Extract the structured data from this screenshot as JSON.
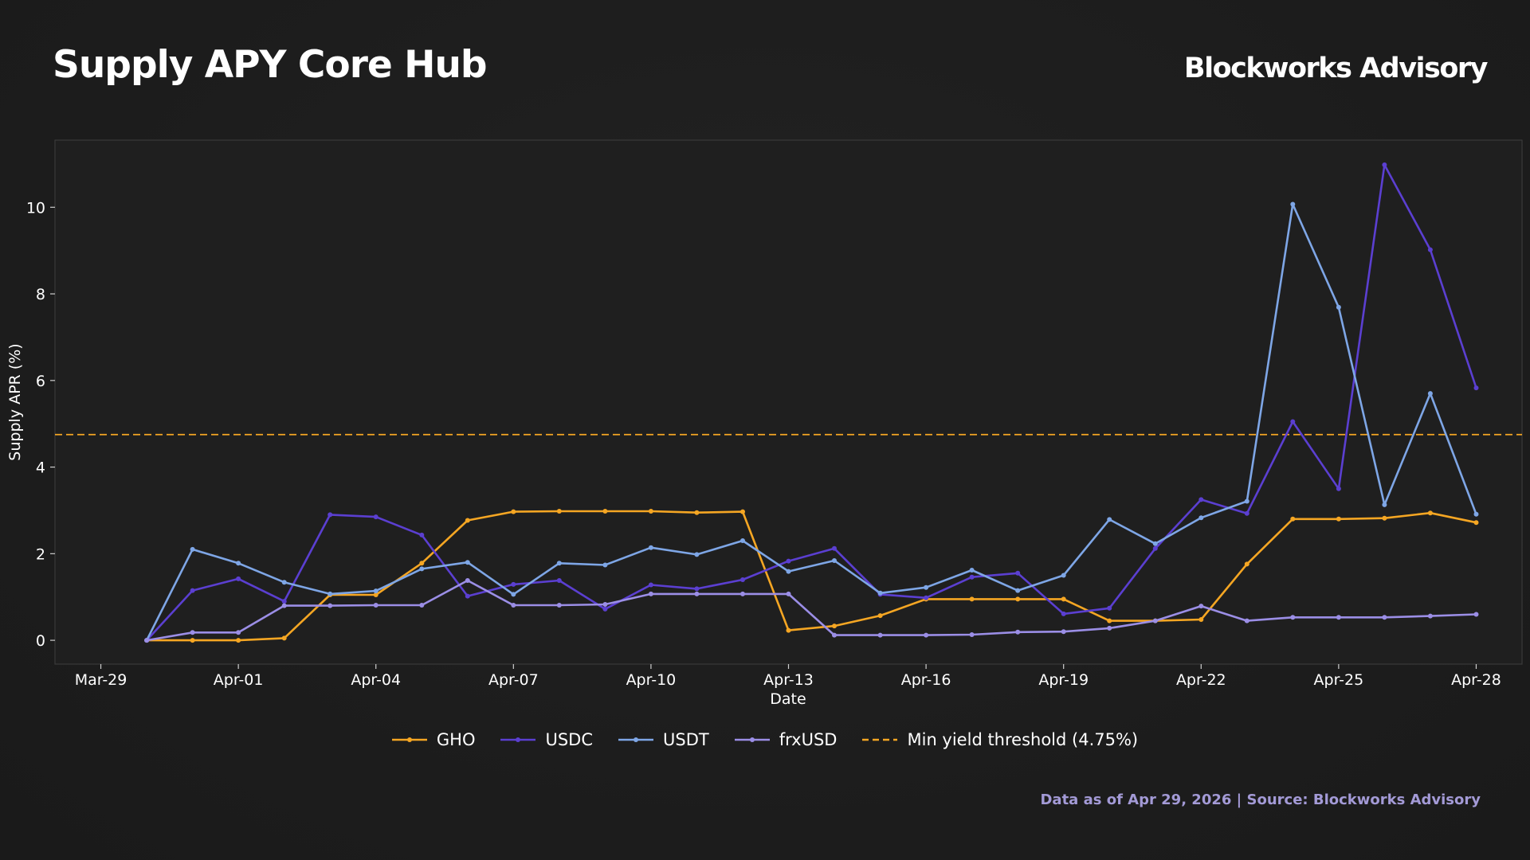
{
  "header": {
    "title": "Supply APY Core Hub",
    "brand": "Blockworks Advisory"
  },
  "footer": {
    "note": "Data as of Apr 29, 2026 | Source: Blockworks Advisory"
  },
  "colors": {
    "background": "#1d1d1d",
    "GHO": "#f5a623",
    "USDC": "#5b3fd1",
    "USDT": "#7ea6e6",
    "frxUSD": "#9b8ee6",
    "threshold": "#f5a623",
    "footer": "#a39ad6"
  },
  "chart_data": {
    "type": "line",
    "xlabel": "Date",
    "ylabel": "Supply APR (%)",
    "x_tick_labels": [
      "Mar-29",
      "Apr-01",
      "Apr-04",
      "Apr-07",
      "Apr-10",
      "Apr-13",
      "Apr-16",
      "Apr-19",
      "Apr-22",
      "Apr-25",
      "Apr-28"
    ],
    "x_tick_dates": [
      "2026-03-29",
      "2026-04-01",
      "2026-04-04",
      "2026-04-07",
      "2026-04-10",
      "2026-04-13",
      "2026-04-16",
      "2026-04-19",
      "2026-04-22",
      "2026-04-25",
      "2026-04-28"
    ],
    "x_range": [
      "2026-03-28",
      "2026-04-29"
    ],
    "y_tick_labels": [
      "0",
      "2",
      "4",
      "6",
      "8",
      "10"
    ],
    "ylim": [
      -0.55,
      11.55
    ],
    "grid": false,
    "legend_position": "bottom-center",
    "x": [
      "2026-03-30",
      "2026-03-31",
      "2026-04-01",
      "2026-04-02",
      "2026-04-03",
      "2026-04-04",
      "2026-04-05",
      "2026-04-06",
      "2026-04-07",
      "2026-04-08",
      "2026-04-09",
      "2026-04-10",
      "2026-04-11",
      "2026-04-12",
      "2026-04-13",
      "2026-04-14",
      "2026-04-15",
      "2026-04-16",
      "2026-04-17",
      "2026-04-18",
      "2026-04-19",
      "2026-04-20",
      "2026-04-21",
      "2026-04-22",
      "2026-04-23",
      "2026-04-24",
      "2026-04-25",
      "2026-04-26",
      "2026-04-27",
      "2026-04-28"
    ],
    "series": [
      {
        "name": "GHO",
        "values": [
          0.0,
          0.0,
          0.0,
          0.05,
          1.05,
          1.05,
          1.78,
          2.77,
          2.97,
          2.98,
          2.98,
          2.98,
          2.95,
          2.97,
          0.23,
          0.33,
          0.57,
          0.95,
          0.95,
          0.95,
          0.95,
          0.45,
          0.45,
          0.48,
          1.76,
          2.8,
          2.8,
          2.82,
          2.94,
          2.72
        ]
      },
      {
        "name": "USDC",
        "values": [
          0.0,
          1.15,
          1.42,
          0.9,
          2.9,
          2.85,
          2.43,
          1.02,
          1.29,
          1.38,
          0.72,
          1.28,
          1.19,
          1.4,
          1.83,
          2.12,
          1.06,
          0.98,
          1.46,
          1.55,
          0.61,
          0.74,
          2.12,
          3.25,
          2.93,
          5.05,
          3.5,
          10.98,
          9.02,
          5.83
        ]
      },
      {
        "name": "USDT",
        "values": [
          0.0,
          2.1,
          1.78,
          1.34,
          1.07,
          1.14,
          1.65,
          1.8,
          1.06,
          1.78,
          1.74,
          2.14,
          1.98,
          2.3,
          1.59,
          1.84,
          1.09,
          1.22,
          1.62,
          1.15,
          1.5,
          2.79,
          2.23,
          2.83,
          3.21,
          10.07,
          7.69,
          3.13,
          5.7,
          2.91
        ]
      },
      {
        "name": "frxUSD",
        "values": [
          0.0,
          0.18,
          0.18,
          0.8,
          0.8,
          0.81,
          0.81,
          1.38,
          0.81,
          0.81,
          0.83,
          1.07,
          1.07,
          1.07,
          1.07,
          0.12,
          0.12,
          0.12,
          0.13,
          0.19,
          0.2,
          0.28,
          0.45,
          0.79,
          0.45,
          0.53,
          0.53,
          0.53,
          0.56,
          0.6
        ]
      }
    ],
    "reference_lines": [
      {
        "name": "Min yield threshold (4.75%)",
        "value": 4.75,
        "style": "dashed"
      }
    ]
  }
}
